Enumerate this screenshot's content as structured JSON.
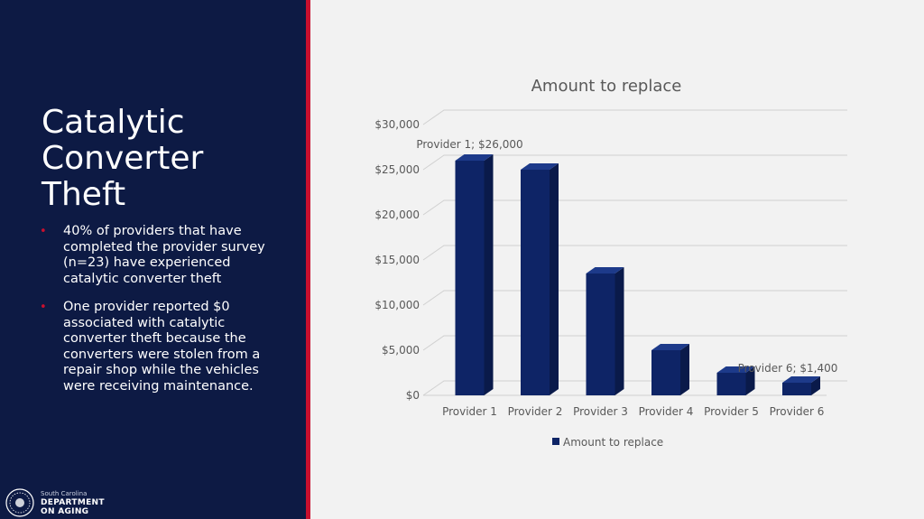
{
  "slide": {
    "title": "Catalytic Converter Theft",
    "bullets": [
      "40% of providers that have completed the provider survey (n=23) have experienced catalytic converter theft",
      "One provider reported $0 associated with catalytic converter theft because the converters were stolen from a repair shop while the vehicles were receiving maintenance."
    ],
    "logo": {
      "line1": "South Carolina",
      "line2": "DEPARTMENT",
      "line3": "ON AGING"
    }
  },
  "colors": {
    "panel": "#0d1a44",
    "accent": "#c8102e",
    "bar": "#0e2466",
    "bar_dark": "#0a1a4a",
    "bar_top": "#1d3a8a"
  },
  "chart_data": {
    "type": "bar",
    "title": "Amount to replace",
    "categories": [
      "Provider 1",
      "Provider 2",
      "Provider 3",
      "Provider 4",
      "Provider 5",
      "Provider 6"
    ],
    "series": [
      {
        "name": "Amount to replace",
        "values": [
          26000,
          25000,
          13500,
          5000,
          2500,
          1400
        ]
      }
    ],
    "ylim": [
      0,
      30000
    ],
    "yticks": [
      0,
      5000,
      10000,
      15000,
      20000,
      25000,
      30000
    ],
    "ytick_labels": [
      "$0",
      "$5,000",
      "$10,000",
      "$15,000",
      "$20,000",
      "$25,000",
      "$30,000"
    ],
    "data_labels": [
      {
        "index": 0,
        "text": "Provider 1; $26,000"
      },
      {
        "index": 5,
        "text": "Provider 6; $1,400"
      }
    ],
    "legend_position": "bottom",
    "grid": true,
    "style": "3d"
  }
}
